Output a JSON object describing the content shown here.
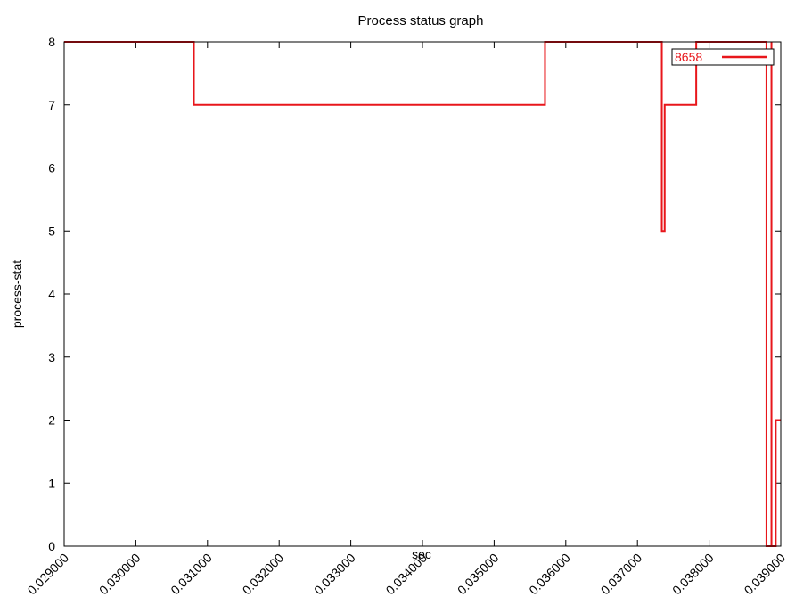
{
  "chart_data": {
    "type": "line",
    "title": "Process status graph",
    "xlabel": "sec",
    "ylabel": "process-stat",
    "xlim": [
      0.029,
      0.039
    ],
    "ylim": [
      0,
      8
    ],
    "x_ticks": [
      "0.029000",
      "0.030000",
      "0.031000",
      "0.032000",
      "0.033000",
      "0.034000",
      "0.035000",
      "0.036000",
      "0.037000",
      "0.038000",
      "0.039000"
    ],
    "y_ticks": [
      "0",
      "1",
      "2",
      "3",
      "4",
      "5",
      "6",
      "7",
      "8"
    ],
    "grid": false,
    "legend_position": "top-right",
    "series": [
      {
        "name": "8658",
        "color": "#e8161b",
        "step": true,
        "points": [
          [
            0.029,
            8
          ],
          [
            0.03081,
            8
          ],
          [
            0.03081,
            7
          ],
          [
            0.03571,
            7
          ],
          [
            0.03571,
            8
          ],
          [
            0.03734,
            8
          ],
          [
            0.03734,
            5
          ],
          [
            0.03738,
            5
          ],
          [
            0.03738,
            7
          ],
          [
            0.03782,
            7
          ],
          [
            0.03782,
            8
          ],
          [
            0.0388,
            8
          ],
          [
            0.0388,
            0
          ],
          [
            0.03887,
            0
          ],
          [
            0.03887,
            8
          ],
          [
            0.03887,
            0
          ],
          [
            0.03893,
            0
          ],
          [
            0.03893,
            2
          ],
          [
            0.039,
            2
          ]
        ]
      }
    ]
  }
}
